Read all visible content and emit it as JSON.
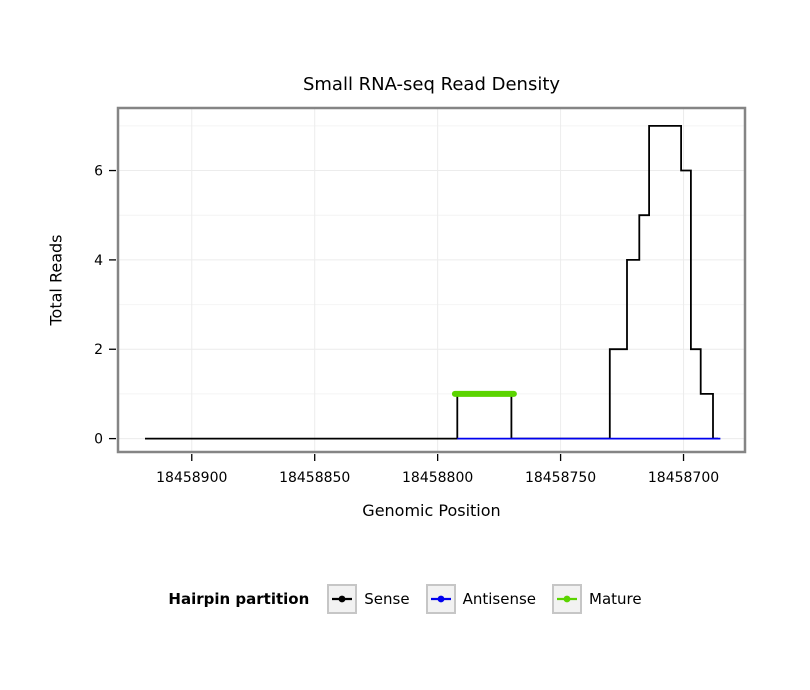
{
  "chart_data": {
    "type": "line",
    "step": true,
    "title": "Small RNA-seq Read Density",
    "xlabel": "Genomic Position",
    "ylabel": "Total Reads",
    "grid": true,
    "x_axis": {
      "reversed": true,
      "range_left": 18458930,
      "range_right": 18458675,
      "ticks": [
        18458900,
        18458850,
        18458800,
        18458750,
        18458700
      ]
    },
    "y_axis": {
      "range": [
        -0.3,
        7.4
      ],
      "ticks": [
        0,
        2,
        4,
        6
      ],
      "minor_ticks": [
        1,
        3,
        5,
        7
      ]
    },
    "series": [
      {
        "name": "Sense",
        "color": "#000000",
        "width": 1.8,
        "points": [
          [
            18458919,
            0
          ],
          [
            18458792,
            0
          ],
          [
            18458792,
            1
          ],
          [
            18458770,
            1
          ],
          [
            18458770,
            0
          ],
          [
            18458730,
            0
          ],
          [
            18458730,
            2
          ],
          [
            18458723,
            2
          ],
          [
            18458723,
            4
          ],
          [
            18458718,
            4
          ],
          [
            18458718,
            5
          ],
          [
            18458714,
            5
          ],
          [
            18458714,
            7
          ],
          [
            18458701,
            7
          ],
          [
            18458701,
            6
          ],
          [
            18458697,
            6
          ],
          [
            18458697,
            2
          ],
          [
            18458693,
            2
          ],
          [
            18458693,
            1
          ],
          [
            18458688,
            1
          ],
          [
            18458688,
            0
          ],
          [
            18458686,
            0
          ]
        ]
      },
      {
        "name": "Antisense",
        "color": "#0000ee",
        "width": 1.8,
        "points": [
          [
            18458792,
            0
          ],
          [
            18458685,
            0
          ]
        ]
      },
      {
        "name": "Mature",
        "color": "#5bd400",
        "width": 6,
        "linecap": "round",
        "points": [
          [
            18458793,
            1
          ],
          [
            18458769,
            1
          ]
        ]
      }
    ],
    "legend": {
      "title": "Hairpin partition",
      "position": "bottom",
      "entries": [
        {
          "label": "Sense",
          "color": "#000000"
        },
        {
          "label": "Antisense",
          "color": "#0000ee"
        },
        {
          "label": "Mature",
          "color": "#5bd400"
        }
      ]
    },
    "panel": {
      "border_color": "#858585",
      "grid_major_color": "#ececec",
      "grid_minor_color": "#f4f4f4"
    }
  }
}
